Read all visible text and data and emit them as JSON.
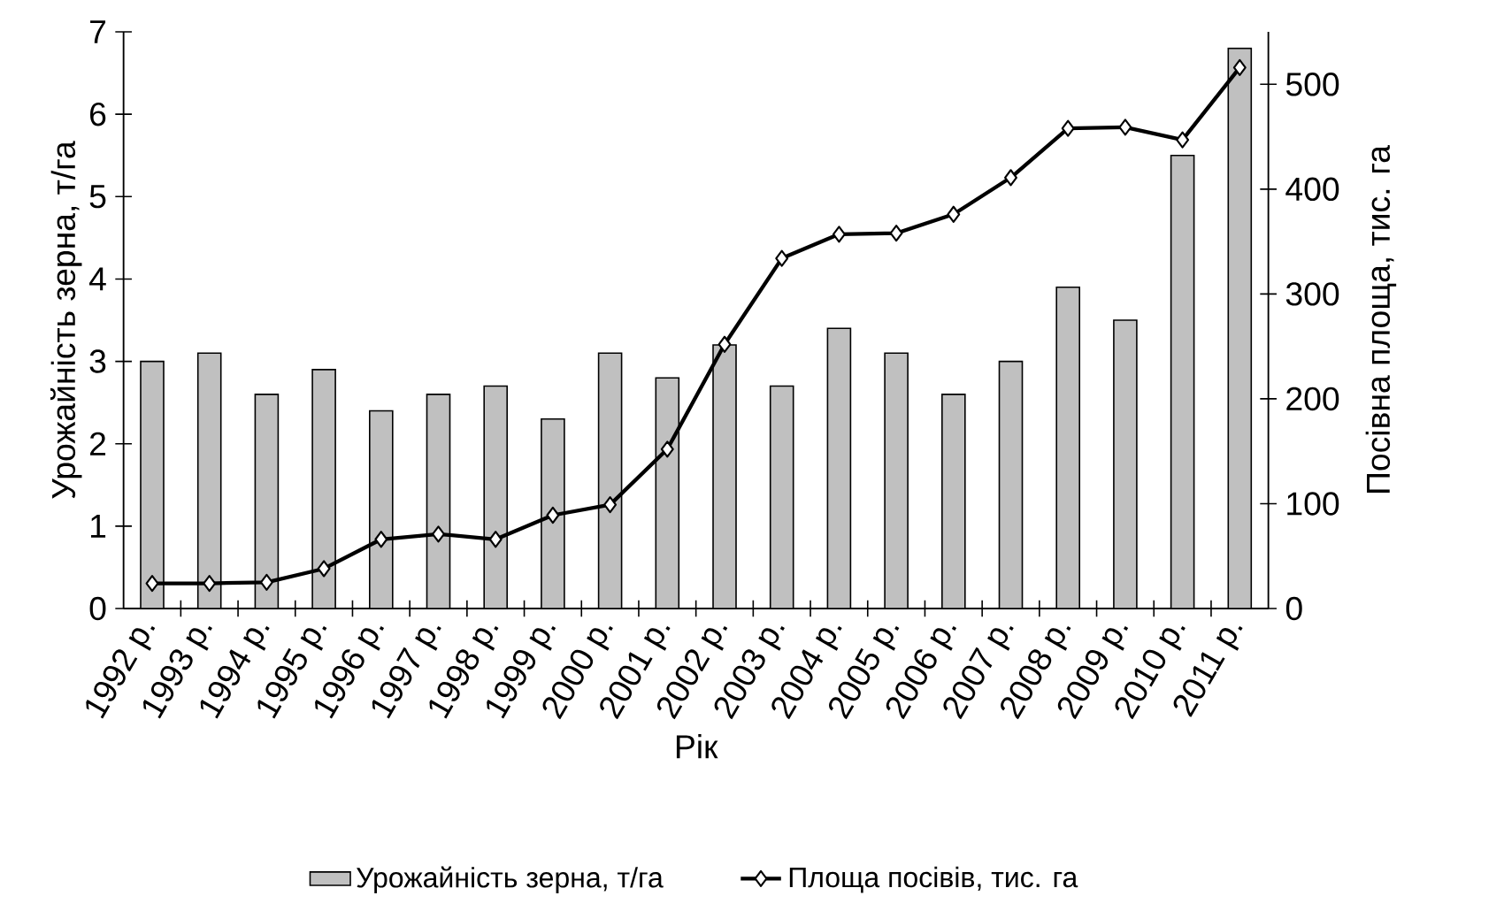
{
  "chart_data": {
    "type": "bar",
    "xlabel": "Рік",
    "ylabel": "Урожайність зерна, т/га",
    "y2label": "Посівна площа, тис. га",
    "categories": [
      "1992 р.",
      "1993 р.",
      "1994 р.",
      "1995 р.",
      "1996 р.",
      "1997 р.",
      "1998 р.",
      "1999 р.",
      "2000 р.",
      "2001 р.",
      "2002 р.",
      "2003 р.",
      "2004 р.",
      "2005 р.",
      "2006 р.",
      "2007 р.",
      "2008 р.",
      "2009 р.",
      "2010 р.",
      "2011 р."
    ],
    "series": [
      {
        "name": "Урожайність зерна, т/га",
        "type": "bar",
        "color": "#c0c0c0",
        "values": [
          3.0,
          3.1,
          2.6,
          2.9,
          2.4,
          2.6,
          2.7,
          2.3,
          3.1,
          2.8,
          3.2,
          2.7,
          3.4,
          3.1,
          2.6,
          3.0,
          3.9,
          3.5,
          5.5,
          6.8
        ]
      },
      {
        "name": "Площа посівів, тис. га",
        "type": "line",
        "axis": "y2",
        "color": "#000000",
        "marker": "diamond",
        "values": [
          24,
          24,
          25,
          38,
          66,
          71,
          66,
          89,
          99,
          152,
          252,
          334,
          357,
          358,
          376,
          411,
          458,
          459,
          447,
          516
        ]
      }
    ],
    "ylim": [
      0,
      7
    ],
    "yticks": [
      0,
      1,
      2,
      3,
      4,
      5,
      6,
      7
    ],
    "y2lim": [
      0,
      550
    ],
    "y2ticks": [
      0,
      100,
      200,
      300,
      400,
      500
    ],
    "legend": "bottom"
  }
}
